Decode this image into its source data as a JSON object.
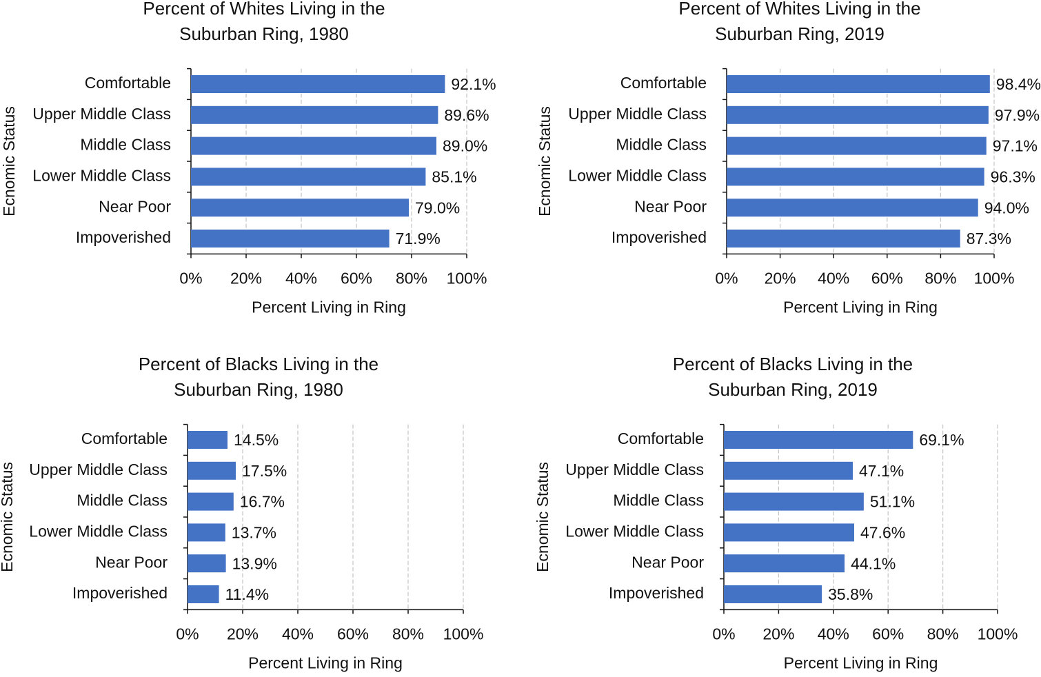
{
  "chart_data": [
    {
      "type": "bar",
      "orientation": "horizontal",
      "title": [
        "Percent of Whites Living in the",
        "Suburban Ring, 1980"
      ],
      "x_label": "Percent Living in Ring",
      "y_label": "Ecnomic Status",
      "categories": [
        "Comfortable",
        "Upper Middle Class",
        "Middle Class",
        "Lower Middle Class",
        "Near Poor",
        "Impoverished"
      ],
      "values": [
        92.1,
        89.6,
        89.0,
        85.1,
        79.0,
        71.9
      ],
      "value_labels": [
        "92.1%",
        "89.6%",
        "89.0%",
        "85.1%",
        "79.0%",
        "71.9%"
      ],
      "color": "#4472c4",
      "xlim": [
        0,
        100
      ],
      "xticks": [
        {
          "value": 0,
          "label": "0%"
        },
        {
          "value": 20,
          "label": "20%"
        },
        {
          "value": 40,
          "label": "40%"
        },
        {
          "value": 60,
          "label": "60%"
        },
        {
          "value": 80,
          "label": "80%"
        },
        {
          "value": 100,
          "label": "100%"
        }
      ],
      "grid": true
    },
    {
      "type": "bar",
      "orientation": "horizontal",
      "title": [
        "Percent of Whites Living in the",
        "Suburban Ring, 2019"
      ],
      "x_label": "Percent Living in Ring",
      "y_label": "Ecnomic Status",
      "categories": [
        "Comfortable",
        "Upper Middle Class",
        "Middle Class",
        "Lower Middle Class",
        "Near Poor",
        "Impoverished"
      ],
      "values": [
        98.4,
        97.9,
        97.1,
        96.3,
        94.0,
        87.3
      ],
      "value_labels": [
        "98.4%",
        "97.9%",
        "97.1%",
        "96.3%",
        "94.0%",
        "87.3%"
      ],
      "color": "#4472c4",
      "xlim": [
        0,
        100
      ],
      "xticks": [
        {
          "value": 0,
          "label": "0%"
        },
        {
          "value": 20,
          "label": "20%"
        },
        {
          "value": 40,
          "label": "40%"
        },
        {
          "value": 60,
          "label": "60%"
        },
        {
          "value": 80,
          "label": "80%"
        },
        {
          "value": 100,
          "label": "100%"
        }
      ],
      "grid": true
    },
    {
      "type": "bar",
      "orientation": "horizontal",
      "title": [
        "Percent of Blacks Living in the",
        "Suburban Ring, 1980"
      ],
      "x_label": "Percent Living in Ring",
      "y_label": "Ecnomic Status",
      "categories": [
        "Comfortable",
        "Upper Middle Class",
        "Middle Class",
        "Lower Middle Class",
        "Near Poor",
        "Impoverished"
      ],
      "values": [
        14.5,
        17.5,
        16.7,
        13.7,
        13.9,
        11.4
      ],
      "value_labels": [
        "14.5%",
        "17.5%",
        "16.7%",
        "13.7%",
        "13.9%",
        "11.4%"
      ],
      "color": "#4472c4",
      "xlim": [
        0,
        100
      ],
      "xticks": [
        {
          "value": 0,
          "label": "0%"
        },
        {
          "value": 20,
          "label": "20%"
        },
        {
          "value": 40,
          "label": "40%"
        },
        {
          "value": 60,
          "label": "60%"
        },
        {
          "value": 80,
          "label": "80%"
        },
        {
          "value": 100,
          "label": "100%"
        }
      ],
      "grid": true
    },
    {
      "type": "bar",
      "orientation": "horizontal",
      "title": [
        "Percent of Blacks Living in the",
        "Suburban Ring, 2019"
      ],
      "x_label": "Percent Living in Ring",
      "y_label": "Ecnomic Status",
      "categories": [
        "Comfortable",
        "Upper Middle Class",
        "Middle Class",
        "Lower Middle Class",
        "Near Poor",
        "Impoverished"
      ],
      "values": [
        69.1,
        47.1,
        51.1,
        47.6,
        44.1,
        35.8
      ],
      "value_labels": [
        "69.1%",
        "47.1%",
        "51.1%",
        "47.6%",
        "44.1%",
        "35.8%"
      ],
      "color": "#4472c4",
      "xlim": [
        0,
        100
      ],
      "xticks": [
        {
          "value": 0,
          "label": "0%"
        },
        {
          "value": 20,
          "label": "20%"
        },
        {
          "value": 40,
          "label": "40%"
        },
        {
          "value": 60,
          "label": "60%"
        },
        {
          "value": 80,
          "label": "80%"
        },
        {
          "value": 100,
          "label": "100%"
        }
      ],
      "grid": true
    }
  ]
}
